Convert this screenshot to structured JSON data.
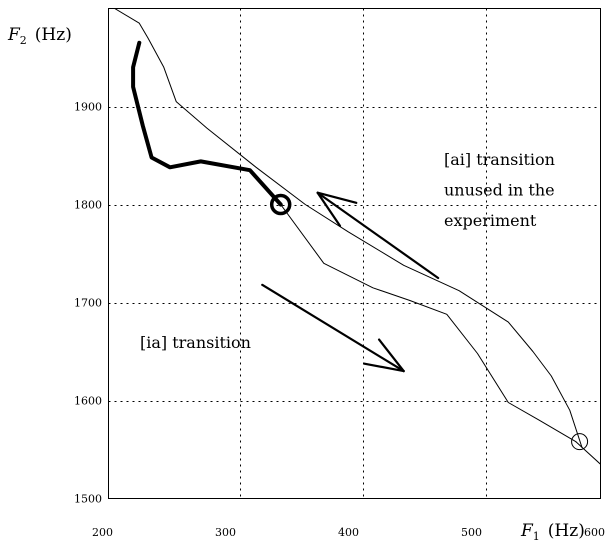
{
  "chart_data": {
    "type": "line",
    "title": "",
    "xlabel": {
      "symbol": "F",
      "subscript": "1",
      "unit": "(Hz)"
    },
    "ylabel": {
      "symbol": "F",
      "subscript": "2",
      "unit": "(Hz)"
    },
    "xlim": [
      200,
      600
    ],
    "ylim": [
      1500,
      2000
    ],
    "x_ticks": [
      200,
      300,
      400,
      500,
      600
    ],
    "y_ticks": [
      1500,
      1600,
      1700,
      1800,
      1900
    ],
    "x_tick_labels": [
      "200",
      "300",
      "400",
      "500",
      "600"
    ],
    "y_tick_labels": [
      "1500",
      "1600",
      "1700",
      "1800",
      "1900"
    ],
    "grid": true,
    "grid_style": "dotted",
    "series": [
      {
        "role": "thick trajectory",
        "x": [
          225,
          220,
          220,
          228,
          235,
          250,
          275,
          315,
          340
        ],
        "y": [
          1965,
          1940,
          1920,
          1880,
          1848,
          1838,
          1844,
          1835,
          1800
        ]
      },
      {
        "role": "thin trajectory",
        "x": [
          340,
          375,
          415,
          445,
          475,
          500,
          525,
          550,
          580
        ],
        "y": [
          1800,
          1740,
          1715,
          1702,
          1688,
          1648,
          1598,
          1580,
          1558
        ]
      },
      {
        "role": "thin trajectory",
        "x": [
          580,
          600,
          605,
          610,
          615,
          620,
          625,
          630
        ],
        "y": [
          1558,
          1535,
          1528,
          1518,
          1512,
          1508,
          1505,
          1500
        ]
      },
      {
        "role": "thin trajectory",
        "x": [
          205,
          225,
          232,
          245,
          255,
          280,
          320,
          360,
          395,
          440,
          485,
          525,
          545,
          560,
          575,
          585
        ],
        "y": [
          2000,
          1985,
          1970,
          1940,
          1905,
          1878,
          1838,
          1800,
          1772,
          1738,
          1712,
          1680,
          1650,
          1625,
          1590,
          1552
        ]
      }
    ],
    "markers": [
      {
        "x": 340,
        "y": 1800,
        "style": "thick circle"
      },
      {
        "x": 583,
        "y": 1558,
        "style": "thin circle"
      }
    ],
    "annotations": [
      {
        "lines": [
          "[ai] transition",
          "unused in the",
          "experiment"
        ]
      },
      {
        "lines": [
          "[ia] transition"
        ]
      }
    ],
    "arrows": [
      {
        "from": [
          468,
          1725
        ],
        "to": [
          370,
          1812
        ],
        "label_ref": 0
      },
      {
        "from": [
          325,
          1718
        ],
        "to": [
          440,
          1630
        ],
        "label_ref": 1
      }
    ]
  }
}
